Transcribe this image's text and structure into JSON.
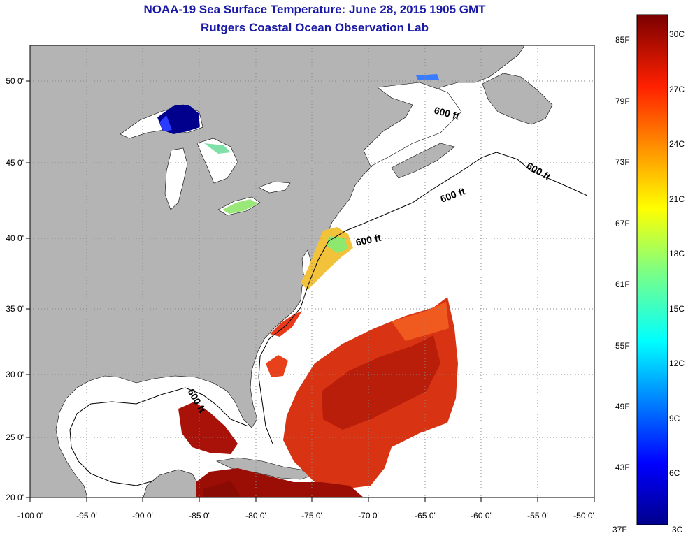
{
  "title": "NOAA-19 Sea Surface Temperature:  June 28, 2015 1905 GMT",
  "subtitle": "Rutgers Coastal Ocean Observation Lab",
  "lon_labels": [
    "-100 0'",
    "-95 0'",
    "-90 0'",
    "-85 0'",
    "-80 0'",
    "-75 0'",
    "-70 0'",
    "-65 0'",
    "-60 0'",
    "-55 0'",
    "-50 0'"
  ],
  "lat_labels": [
    "20 0'",
    "25 0'",
    "30 0'",
    "35 0'",
    "40 0'",
    "45 0'",
    "50 0'"
  ],
  "contour_labels": [
    "600 ft",
    "600 ft",
    "600 ft",
    "600 ft",
    "600 ft"
  ],
  "colorbar": {
    "fahrenheit": [
      "85F",
      "79F",
      "73F",
      "67F",
      "61F",
      "55F",
      "49F",
      "43F",
      "37F"
    ],
    "celsius": [
      "30C",
      "27C",
      "24C",
      "21C",
      "18C",
      "15C",
      "12C",
      "9C",
      "6C",
      "3C"
    ]
  },
  "colors": {
    "land": "#b4b4b4",
    "title": "#1a1aa6",
    "warm": "#c81e0a",
    "cold": "#00008c"
  }
}
